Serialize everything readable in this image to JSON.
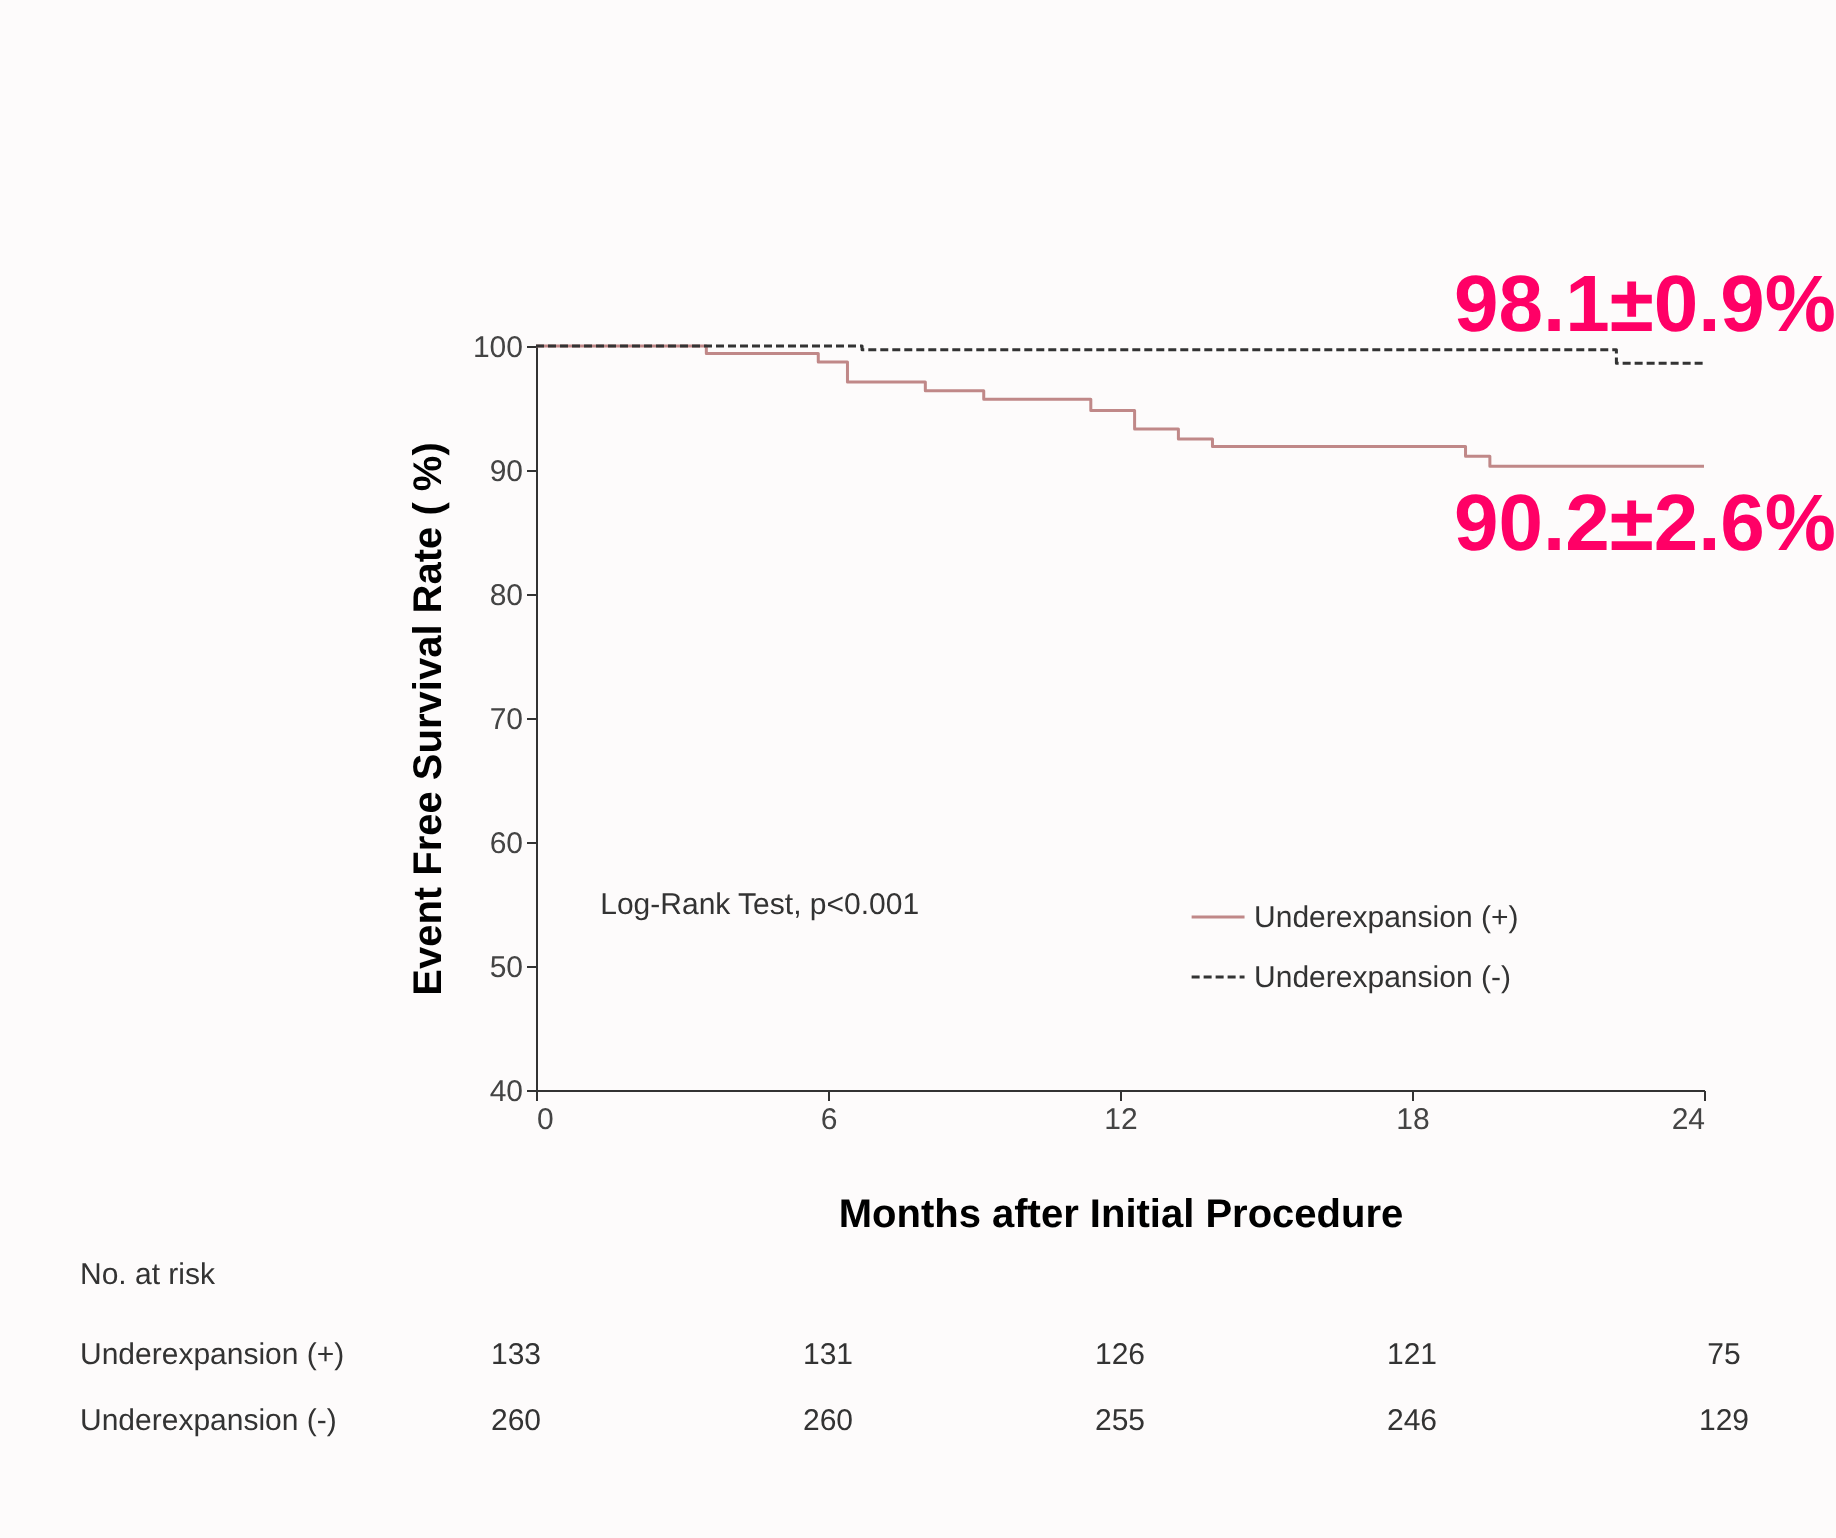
{
  "chart_data": {
    "type": "step",
    "xlabel": "Months after Initial Procedure",
    "ylabel": "Event Free Survival Rate ( %)",
    "xlim": [
      0,
      24
    ],
    "xticks": [
      0,
      6,
      12,
      18,
      24
    ],
    "ylim": [
      40,
      100
    ],
    "yticks": [
      40,
      50,
      60,
      70,
      80,
      90,
      100
    ],
    "grid": false,
    "legend": "bottom right",
    "marker": "none",
    "series": [
      {
        "name": "Underexpansion (+)",
        "color": "#c08888",
        "line_style": "solid",
        "x": [
          0,
          3.5,
          5.8,
          6.4,
          8.0,
          9.2,
          11.4,
          12.3,
          13.2,
          13.9,
          19.1,
          19.6,
          24
        ],
        "values": [
          100,
          99.4,
          98.7,
          97.1,
          96.4,
          95.7,
          94.8,
          93.3,
          92.5,
          91.9,
          91.1,
          90.3,
          90.3
        ]
      },
      {
        "name": "Underexpansion (-)",
        "color": "#333333",
        "line_style": "dashed",
        "x": [
          0,
          6.7,
          22.2,
          24
        ],
        "values": [
          100,
          99.7,
          98.6,
          98.6
        ]
      }
    ],
    "annotations": [
      "Log-Rank Test, p<0.001",
      {
        "text": "98.1±0.9%",
        "x": 24,
        "y": 98.6
      },
      {
        "text": "90.2±2.6%",
        "x": 24,
        "y": 90.3
      },
      "No. at risk",
      "Underexpansion (+)",
      "133",
      "131",
      "126",
      "121",
      "75",
      "Underexpansion (-)",
      "260",
      "260",
      "255",
      "246",
      "129"
    ]
  }
}
